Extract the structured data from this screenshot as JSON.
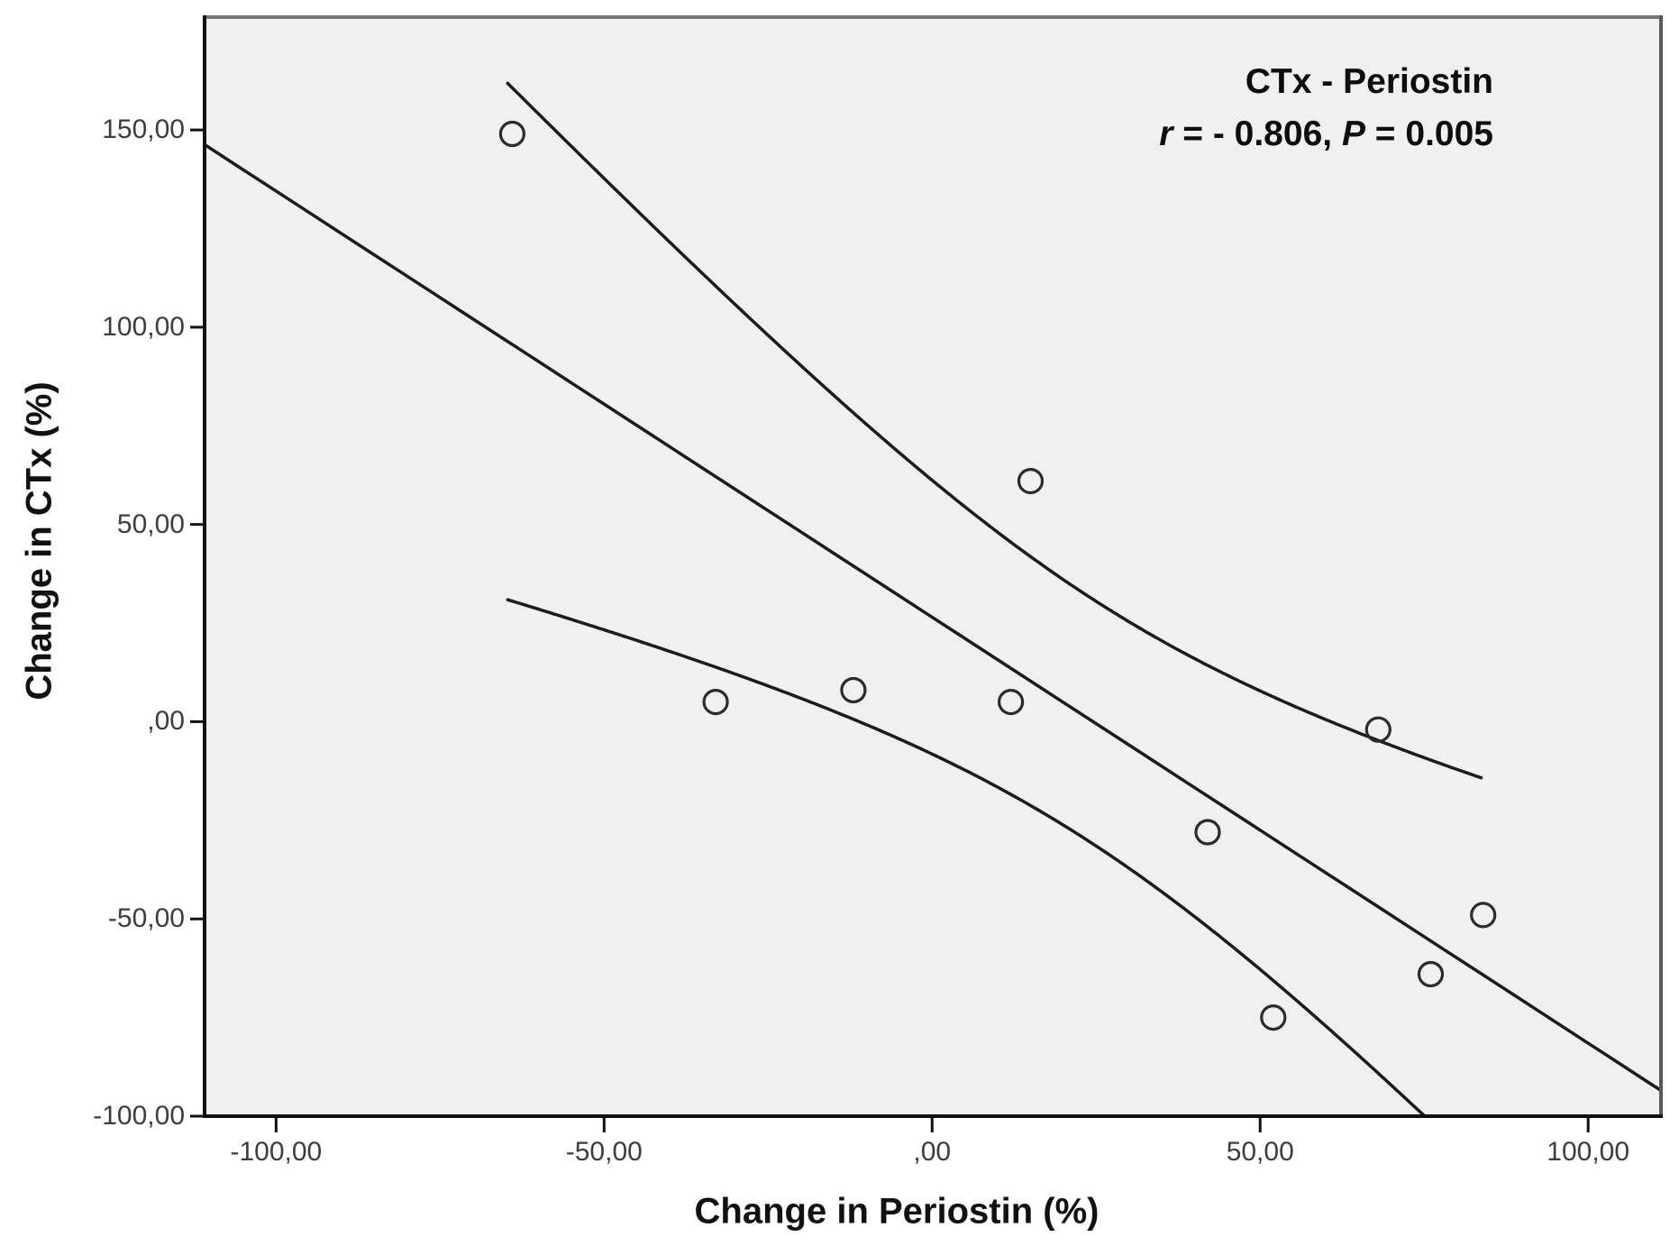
{
  "annotation": {
    "title": "CTx - Periostin",
    "r_label": "r",
    "r_value": " = - 0.806, ",
    "p_label": "P",
    "p_value": " = 0.005"
  },
  "axes": {
    "x_title": "Change in Periostin (%)",
    "y_title": "Change in CTx (%)"
  },
  "chart_data": {
    "type": "scatter",
    "title": "CTx - Periostin",
    "annotation_stats": "r = - 0.806, P = 0.005",
    "xlabel": "Change in Periostin (%)",
    "ylabel": "Change in CTx (%)",
    "xlim": [
      -110.9,
      111.1
    ],
    "ylim": [
      -100,
      178.6
    ],
    "grid": false,
    "legend": false,
    "x_ticks": [
      {
        "value": -100,
        "label": "-100,00"
      },
      {
        "value": -50,
        "label": "-50,00"
      },
      {
        "value": 0,
        "label": ",00"
      },
      {
        "value": 50,
        "label": "50,00"
      },
      {
        "value": 100,
        "label": "100,00"
      }
    ],
    "y_ticks": [
      {
        "value": 150,
        "label": "150,00"
      },
      {
        "value": 100,
        "label": "100,00"
      },
      {
        "value": 50,
        "label": "50,00"
      },
      {
        "value": 0,
        "label": ",00"
      },
      {
        "value": -50,
        "label": "-50,00"
      },
      {
        "value": -100,
        "label": "-100,00"
      }
    ],
    "points": [
      [
        -64,
        149
      ],
      [
        15,
        61
      ],
      [
        -33,
        5
      ],
      [
        -12,
        8
      ],
      [
        12,
        5
      ],
      [
        68,
        -2
      ],
      [
        42,
        -28
      ],
      [
        84,
        -49
      ],
      [
        76,
        -64
      ],
      [
        52,
        -75
      ]
    ],
    "fit_line": {
      "slope": -1.08,
      "intercept": 26.5,
      "x_range": [
        -110.9,
        111.1
      ]
    },
    "ci_band": {
      "half_width_at_mean": 31,
      "x_mean": 24,
      "spread": 47.7,
      "x_range": [
        -64.7,
        83.7
      ]
    },
    "marker": {
      "shape": "circle-open",
      "radius_px": 13
    }
  },
  "style": {
    "plot_bg": "#f0f0f0",
    "page_bg": "#ffffff",
    "curve_color": "#1c1c1c",
    "marker_color": "#2b2b2b",
    "axis_color": "#111111",
    "frame_top_color": "#767676",
    "frame_right_color": "#5a5a5a",
    "tick_color": "#111111",
    "tick_label_color": "#3d3d3d",
    "title_color": "#111111"
  }
}
